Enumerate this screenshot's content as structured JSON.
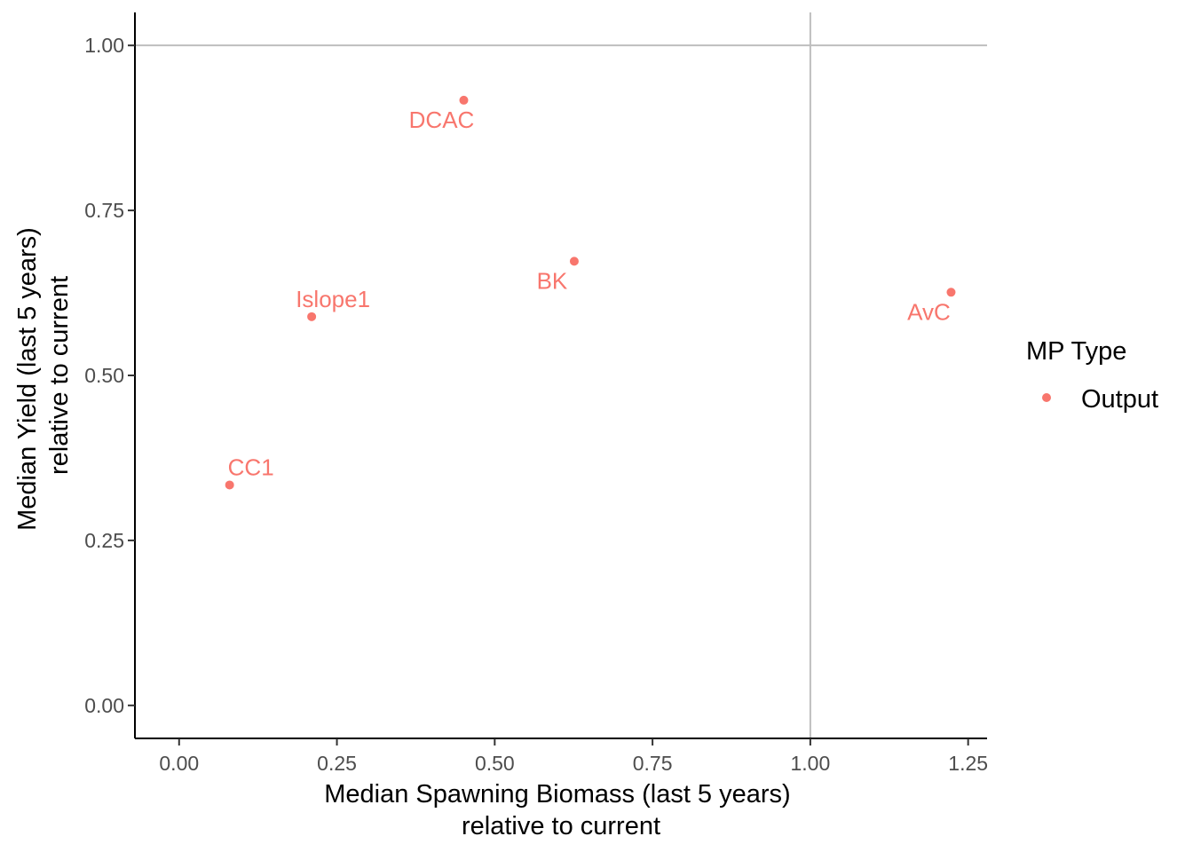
{
  "chart_data": {
    "type": "scatter",
    "title": "",
    "xlabel": [
      "Median Spawning Biomass (last 5 years)",
      "relative to current"
    ],
    "ylabel": [
      "Median Yield (last 5 years)",
      "relative to current"
    ],
    "xlim": [
      -0.07,
      1.28
    ],
    "ylim": [
      -0.05,
      1.05
    ],
    "x_ticks": [
      0.0,
      0.25,
      0.5,
      0.75,
      1.0,
      1.25
    ],
    "x_tick_labels": [
      "0.00",
      "0.25",
      "0.50",
      "0.75",
      "1.00",
      "1.25"
    ],
    "y_ticks": [
      0.0,
      0.25,
      0.5,
      0.75,
      1.0
    ],
    "y_tick_labels": [
      "0.00",
      "0.25",
      "0.50",
      "0.75",
      "1.00"
    ],
    "reference_lines": {
      "x": 1.0,
      "y": 1.0,
      "color": "#bebebe"
    },
    "grid": false,
    "legend": {
      "title": "MP Type",
      "placement": "right",
      "entries": [
        {
          "label": "Output",
          "color": "#f8766d"
        }
      ]
    },
    "series": [
      {
        "name": "Output",
        "color": "#f8766d",
        "points": [
          {
            "label": "DCAC",
            "x": 0.451,
            "y": 0.917,
            "label_side": "below"
          },
          {
            "label": "BK",
            "x": 0.626,
            "y": 0.673,
            "label_side": "below"
          },
          {
            "label": "Islope1",
            "x": 0.21,
            "y": 0.589,
            "label_side": "above"
          },
          {
            "label": "AvC",
            "x": 1.223,
            "y": 0.626,
            "label_side": "below"
          },
          {
            "label": "CC1",
            "x": 0.08,
            "y": 0.334,
            "label_side": "above"
          }
        ]
      }
    ]
  }
}
